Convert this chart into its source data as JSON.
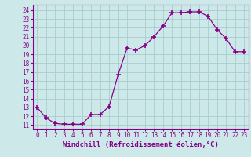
{
  "x": [
    0,
    1,
    2,
    3,
    4,
    5,
    6,
    7,
    8,
    9,
    10,
    11,
    12,
    13,
    14,
    15,
    16,
    17,
    18,
    19,
    20,
    21,
    22,
    23
  ],
  "y": [
    13.0,
    11.8,
    11.2,
    11.1,
    11.1,
    11.1,
    12.2,
    12.2,
    13.1,
    16.7,
    19.7,
    19.5,
    20.0,
    21.0,
    22.2,
    23.7,
    23.7,
    23.8,
    23.8,
    23.3,
    21.8,
    20.8,
    19.3,
    19.3
  ],
  "line_color": "#880088",
  "marker": "+",
  "marker_size": 4,
  "marker_lw": 1.2,
  "bg_color": "#cce8e8",
  "grid_color": "#aacccc",
  "xlabel": "Windchill (Refroidissement éolien,°C)",
  "xlabel_color": "#880088",
  "ylabel_ticks": [
    11,
    12,
    13,
    14,
    15,
    16,
    17,
    18,
    19,
    20,
    21,
    22,
    23,
    24
  ],
  "ylim": [
    10.6,
    24.6
  ],
  "xlim": [
    -0.5,
    23.5
  ],
  "xticks": [
    0,
    1,
    2,
    3,
    4,
    5,
    6,
    7,
    8,
    9,
    10,
    11,
    12,
    13,
    14,
    15,
    16,
    17,
    18,
    19,
    20,
    21,
    22,
    23
  ],
  "tick_color": "#880088",
  "tick_fontsize": 5.5,
  "xlabel_fontsize": 6.5,
  "spine_color": "#880088",
  "linewidth": 0.9
}
